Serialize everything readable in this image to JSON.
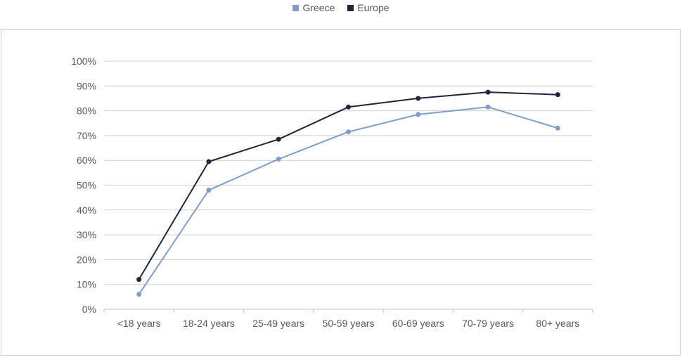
{
  "legend": {
    "position": "top"
  },
  "colors": {
    "greece": "#7f9dc6",
    "europe": "#1d2738",
    "grid": "#d0d0d0",
    "axis": "#bfbfbf"
  },
  "chart_data": {
    "type": "line",
    "title": "",
    "xlabel": "",
    "ylabel": "",
    "categories": [
      "<18 years",
      "18-24 years",
      "25-49 years",
      "50-59 years",
      "60-69 years",
      "70-79 years",
      "80+ years"
    ],
    "series": [
      {
        "name": "Greece",
        "color": "#7f9dc6",
        "values": [
          6,
          48,
          60.5,
          71.5,
          78.5,
          81.5,
          73
        ]
      },
      {
        "name": "Europe",
        "color": "#1d2738",
        "values": [
          12,
          59.5,
          68.5,
          81.5,
          85,
          87.5,
          86.5
        ]
      }
    ],
    "ylim": [
      0,
      100
    ],
    "yticks": [
      "0%",
      "10%",
      "20%",
      "30%",
      "40%",
      "50%",
      "60%",
      "70%",
      "80%",
      "90%",
      "100%"
    ],
    "grid": true
  }
}
